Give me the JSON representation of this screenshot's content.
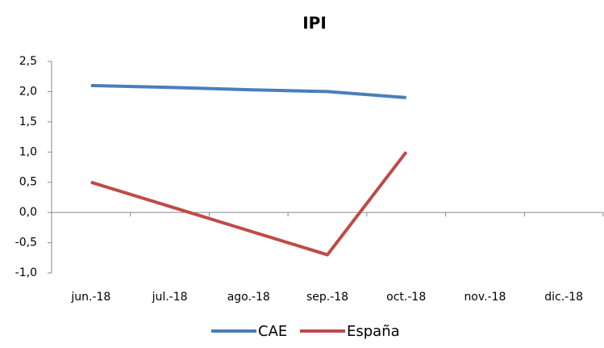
{
  "chart_data": {
    "type": "line",
    "title": "IPI",
    "categories": [
      "jun.-18",
      "jul.-18",
      "ago.-18",
      "sep.-18",
      "oct.-18",
      "nov.-18",
      "dic.-18"
    ],
    "series": [
      {
        "name": "CAE",
        "color": "#4a7ebb",
        "values": [
          2.1,
          2.07,
          2.03,
          2.0,
          1.9,
          null,
          null
        ]
      },
      {
        "name": "España",
        "color": "#be4b48",
        "values": [
          0.5,
          0.1,
          -0.3,
          -0.7,
          1.0,
          null,
          null
        ]
      }
    ],
    "ylim": [
      -1.0,
      2.5
    ],
    "yticks": [
      {
        "value": -1.0,
        "label": "-1,0"
      },
      {
        "value": -0.5,
        "label": "-0,5"
      },
      {
        "value": 0,
        "label": "0,0"
      },
      {
        "value": 0.5,
        "label": "0,5"
      },
      {
        "value": 1.0,
        "label": "1,0"
      },
      {
        "value": 1.5,
        "label": "1,5"
      },
      {
        "value": 2.0,
        "label": "2,0"
      },
      {
        "value": 2.5,
        "label": "2,5"
      }
    ],
    "grid": false,
    "legend": "bottom"
  }
}
